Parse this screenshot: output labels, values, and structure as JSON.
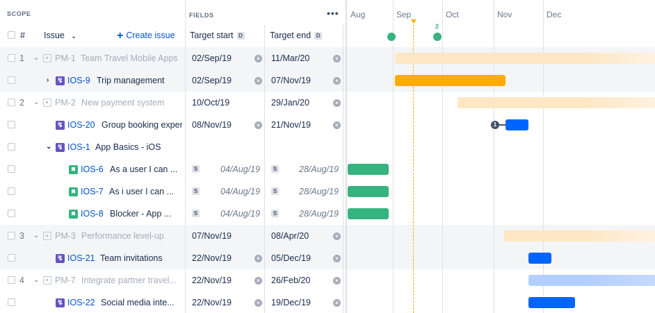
{
  "scope_header": {
    "section_label": "SCOPE",
    "hash": "#",
    "issue_label": "Issue",
    "create_issue": "Create issue"
  },
  "fields_header": {
    "section_label": "FIELDS",
    "more_label": "•••",
    "target_start": "Target start",
    "target_end": "Target end",
    "badge": "D"
  },
  "timeline": {
    "months": [
      "Aug",
      "Sep",
      "Oct",
      "Nov",
      "Dec"
    ],
    "release_count": "2",
    "dependency_count": "1"
  },
  "rows": [
    {
      "num": "1",
      "key": "PM-1",
      "title": "Team Travel Mobile Apps",
      "start": "02/Sep/19",
      "end": "11/Mar/20"
    },
    {
      "num": "",
      "key": "IOS-9",
      "title": "Trip management",
      "start": "02/Sep/19",
      "end": "07/Nov/19"
    },
    {
      "num": "2",
      "key": "PM-2",
      "title": "New payment system",
      "start": "10/Oct/19",
      "end": "29/Jan/20"
    },
    {
      "num": "",
      "key": "IOS-20",
      "title": "Group booking exper",
      "start": "08/Nov/19",
      "end": "21/Nov/19"
    },
    {
      "num": "",
      "key": "IOS-1",
      "title": "App Basics - iOS",
      "start": "",
      "end": ""
    },
    {
      "num": "",
      "key": "IOS-6",
      "title": "As a user I can ...",
      "start": "04/Aug/19",
      "end": "28/Aug/19",
      "sbadge": "S"
    },
    {
      "num": "",
      "key": "IOS-7",
      "title": "As i user I can ...",
      "start": "04/Aug/19",
      "end": "28/Aug/19",
      "sbadge": "S"
    },
    {
      "num": "",
      "key": "IOS-8",
      "title": "Blocker - App ...",
      "start": "04/Aug/19",
      "end": "28/Aug/19",
      "sbadge": "S"
    },
    {
      "num": "3",
      "key": "PM-3",
      "title": "Performance level-up",
      "start": "07/Nov/19",
      "end": "08/Apr/20"
    },
    {
      "num": "",
      "key": "IOS-21",
      "title": "Team invitations",
      "start": "22/Nov/19",
      "end": "05/Dec/19"
    },
    {
      "num": "4",
      "key": "PM-7",
      "title": "Integrate partner travel...",
      "start": "22/Nov/19",
      "end": "26/Feb/20"
    },
    {
      "num": "",
      "key": "IOS-22",
      "title": "Social media inte...",
      "start": "22/Nov/19",
      "end": "19/Dec/19"
    }
  ],
  "icons": {
    "expand": "chevron-down-icon",
    "collapse": "chevron-right-icon",
    "clear": "clear-x-icon",
    "epic": "epic-icon",
    "task": "lightning-task-icon",
    "story": "bookmark-story-icon",
    "plus": "plus-icon"
  },
  "colors": {
    "accent_blue": "#0052CC",
    "bar_orange": "#FFAB00",
    "bar_orange_light": "#FDEBD0",
    "bar_green": "#36B37E",
    "bar_blue": "#0065FF",
    "bar_blue_light": "#C6DAFE",
    "task_purple": "#6554C0",
    "today_marker": "#FFAB00"
  }
}
